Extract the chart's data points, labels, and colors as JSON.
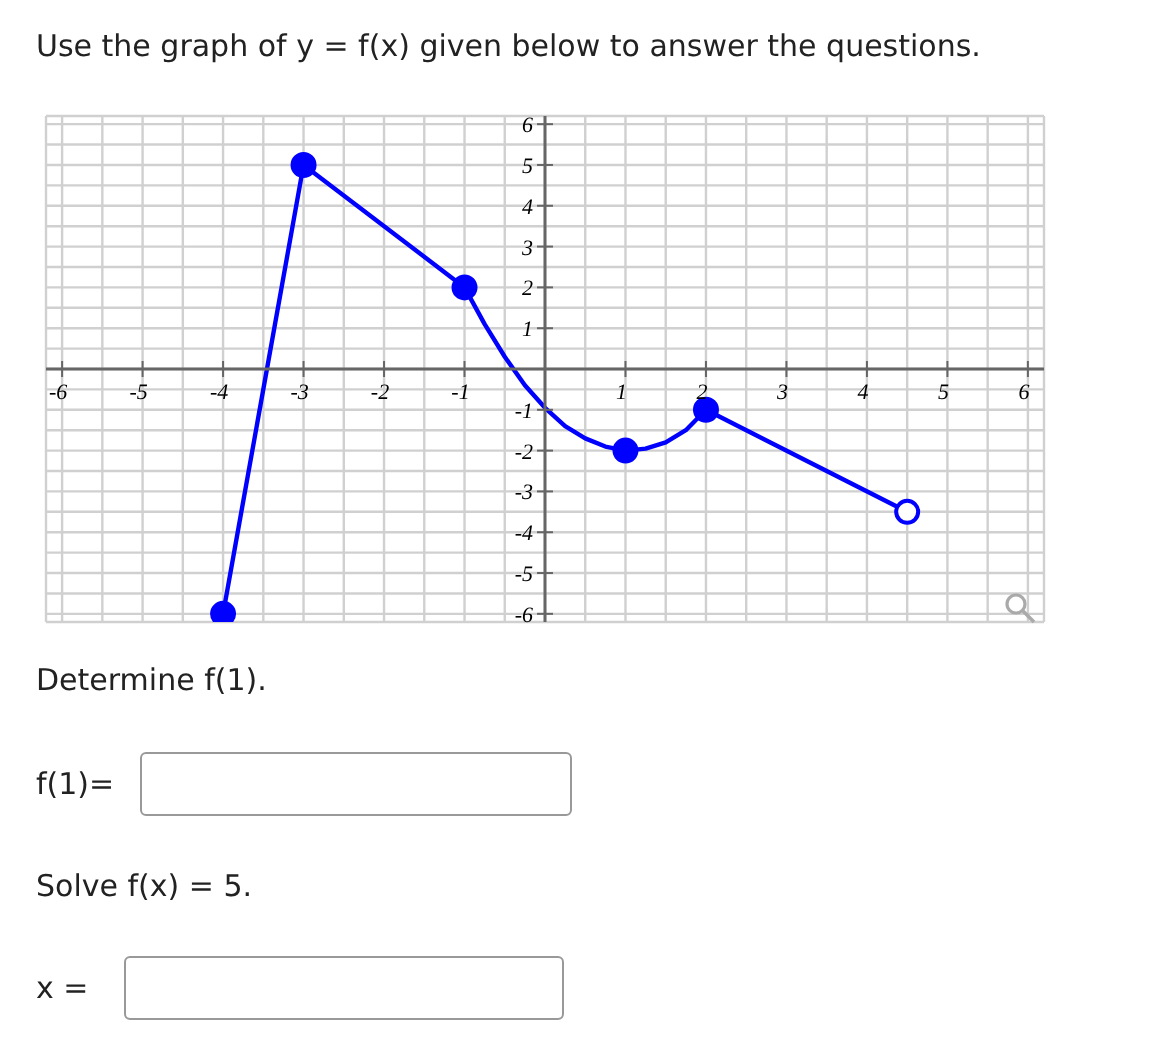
{
  "chart_data": {
    "type": "line",
    "title": "Use the graph of y = f(x) given below to answer the questions.",
    "annotations": [
      "Determine f(1).",
      "f(1)=",
      "Solve f(x) = 5.",
      "x ="
    ],
    "xlim": [
      -6.2,
      6.2
    ],
    "ylim": [
      -6.2,
      6.2
    ],
    "xticks": [
      -6,
      {
        "value": -5.5,
        "label": null
      },
      -5,
      {
        "value": -4.5,
        "label": null
      },
      -4,
      {
        "value": -3.5,
        "label": null
      },
      -3,
      {
        "value": -2.5,
        "label": null
      },
      -2,
      {
        "value": -1.5,
        "label": null
      },
      -1,
      {
        "value": -0.5,
        "label": null
      },
      {
        "value": 0,
        "label": null
      },
      {
        "value": 0.5,
        "label": null
      },
      1,
      {
        "value": 1.5,
        "label": null
      },
      2,
      {
        "value": 2.5,
        "label": null
      },
      3,
      {
        "value": 3.5,
        "label": null
      },
      4,
      {
        "value": 4.5,
        "label": null
      },
      5,
      {
        "value": 5.5,
        "label": null
      },
      6
    ],
    "yticks": [
      -6,
      {
        "value": -5.5,
        "label": null
      },
      -5,
      {
        "value": -4.5,
        "label": null
      },
      -4,
      {
        "value": -3.5,
        "label": null
      },
      -3,
      {
        "value": -2.5,
        "label": null
      },
      -2,
      {
        "value": -1.5,
        "label": null
      },
      -1,
      {
        "value": -0.5,
        "label": null
      },
      {
        "value": 0,
        "label": null
      },
      {
        "value": 0.5,
        "label": null
      },
      1,
      {
        "value": 1.5,
        "label": null
      },
      2,
      {
        "value": 2.5,
        "label": null
      },
      3,
      {
        "value": 3.5,
        "label": null
      },
      4,
      {
        "value": 4.5,
        "label": null
      },
      5,
      {
        "value": 5.5,
        "label": null
      },
      6
    ],
    "grid": true,
    "series": [
      {
        "color": "#0000ff",
        "marker": "none",
        "x": [
          -4,
          -3,
          -1,
          -0.75,
          -0.5,
          -0.25,
          0,
          0.25,
          0.5,
          0.75,
          1,
          1.25,
          1.5,
          1.75,
          2,
          4.5
        ],
        "values": [
          -6,
          5,
          2,
          1.1,
          0.3,
          -0.4,
          -0.95,
          -1.4,
          -1.7,
          -1.9,
          -2,
          -1.95,
          -1.8,
          -1.5,
          -1,
          -3.5
        ]
      },
      {
        "type": "scatter",
        "color": "#0000ff",
        "marker": "circle",
        "x": [
          -4,
          -3,
          -1,
          1,
          2
        ],
        "values": [
          -6,
          5,
          2,
          -2,
          -1
        ]
      },
      {
        "type": "scatter",
        "color": "#ffffff",
        "marker": "circle",
        "x": [
          4.5
        ],
        "values": [
          -3.5
        ]
      }
    ]
  }
}
